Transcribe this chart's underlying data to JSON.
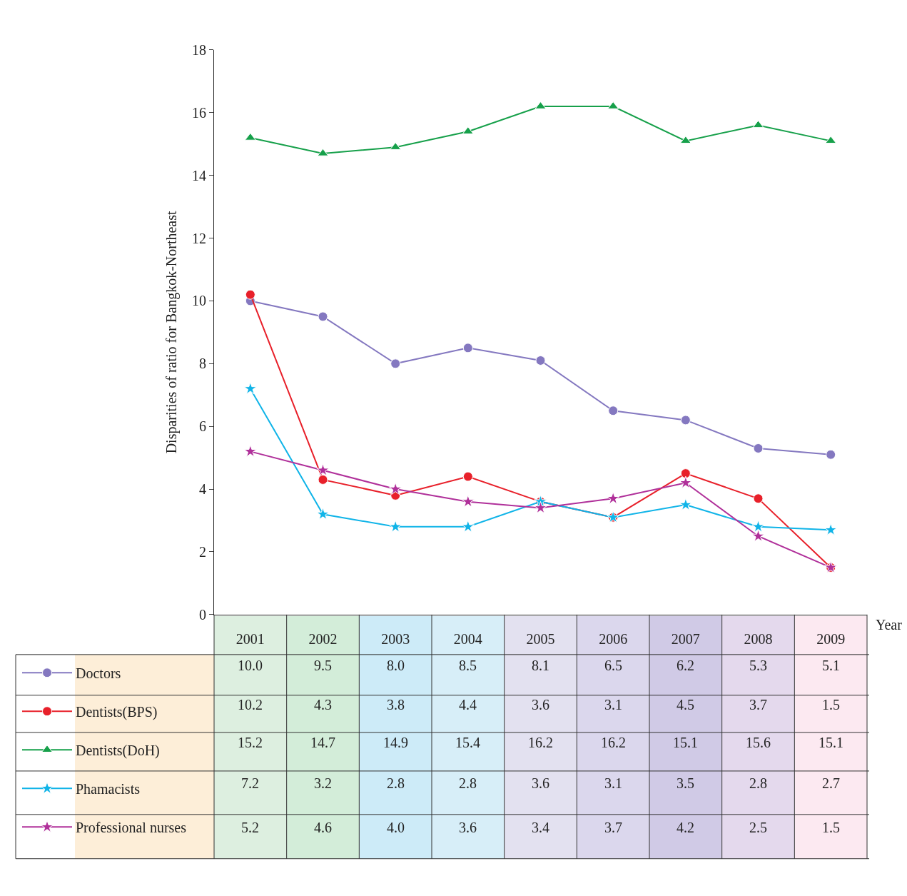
{
  "chart_data": {
    "type": "line",
    "ylabel": "Disparities of ratio for Bangkok-Northeast",
    "xlabel": "Year",
    "categories": [
      "2001",
      "2002",
      "2003",
      "2004",
      "2005",
      "2006",
      "2007",
      "2008",
      "2009"
    ],
    "series": [
      {
        "name": "Doctors",
        "color": "#8478c0",
        "marker": "circle",
        "values": [
          10.0,
          9.5,
          8.0,
          8.5,
          8.1,
          6.5,
          6.2,
          5.3,
          5.1
        ],
        "value_labels": [
          "10.0",
          "9.5",
          "8.0",
          "8.5",
          "8.1",
          "6.5",
          "6.2",
          "5.3",
          "5.1"
        ]
      },
      {
        "name": "Dentists(BPS)",
        "color": "#e8202a",
        "marker": "circle",
        "values": [
          10.2,
          4.3,
          3.8,
          4.4,
          3.6,
          3.1,
          4.5,
          3.7,
          1.5
        ],
        "value_labels": [
          "10.2",
          "4.3",
          "3.8",
          "4.4",
          "3.6",
          "3.1",
          "4.5",
          "3.7",
          "1.5"
        ]
      },
      {
        "name": "Dentists(DoH)",
        "color": "#16a04a",
        "marker": "triangle",
        "values": [
          15.2,
          14.7,
          14.9,
          15.4,
          16.2,
          16.2,
          15.1,
          15.6,
          15.1
        ],
        "value_labels": [
          "15.2",
          "14.7",
          "14.9",
          "15.4",
          "16.2",
          "16.2",
          "15.1",
          "15.6",
          "15.1"
        ]
      },
      {
        "name": "Phamacists",
        "color": "#10b4e8",
        "marker": "star",
        "values": [
          7.2,
          3.2,
          2.8,
          2.8,
          3.6,
          3.1,
          3.5,
          2.8,
          2.7
        ],
        "value_labels": [
          "7.2",
          "3.2",
          "2.8",
          "2.8",
          "3.6",
          "3.1",
          "3.5",
          "2.8",
          "2.7"
        ]
      },
      {
        "name": "Professional nurses",
        "color": "#b0309a",
        "marker": "star",
        "values": [
          5.2,
          4.6,
          4.0,
          3.6,
          3.4,
          3.7,
          4.2,
          2.5,
          1.5
        ],
        "value_labels": [
          "5.2",
          "4.6",
          "4.0",
          "3.6",
          "3.4",
          "3.7",
          "4.2",
          "2.5",
          "1.5"
        ]
      }
    ],
    "ylim": [
      0,
      18
    ],
    "yticks": [
      0,
      2,
      4,
      6,
      8,
      10,
      12,
      14,
      16,
      18
    ],
    "grid": false,
    "legend": "bottom left"
  }
}
